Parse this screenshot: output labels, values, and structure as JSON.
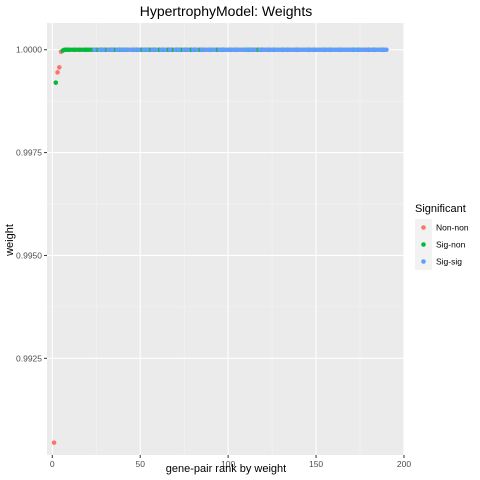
{
  "chart_data": {
    "type": "scatter",
    "title": "HypertrophyModel: Weights",
    "xlabel": "gene-pair rank by weight",
    "ylabel": "weight",
    "xlim": [
      -3,
      200
    ],
    "ylim": [
      0.99015,
      1.00065
    ],
    "x_ticks": [
      0,
      50,
      100,
      150,
      200
    ],
    "y_ticks": [
      0.9925,
      0.995,
      0.9975,
      1.0
    ],
    "y_tick_labels": [
      "0.9925",
      "0.9950",
      "0.9975",
      "1.0000"
    ],
    "grid": true,
    "legend": {
      "title": "Significant",
      "position": "right",
      "entries": [
        {
          "name": "Non-non",
          "color": "#F8766D"
        },
        {
          "name": "Sig-non",
          "color": "#00BA38"
        },
        {
          "name": "Sig-sig",
          "color": "#619CFF"
        }
      ]
    },
    "series": [
      {
        "name": "Non-non",
        "color": "#F8766D",
        "points": [
          [
            1,
            0.99045
          ],
          [
            3,
            0.99945
          ],
          [
            4,
            0.99957
          ],
          [
            5,
            0.99995
          ],
          [
            11,
            1.0
          ],
          [
            14,
            1.0
          ],
          [
            17,
            1.0
          ],
          [
            22,
            1.0
          ],
          [
            26,
            1.0
          ],
          [
            31,
            1.0
          ],
          [
            36,
            1.0
          ],
          [
            44,
            1.0
          ],
          [
            50,
            1.0
          ],
          [
            56,
            1.0
          ],
          [
            60,
            1.0
          ],
          [
            65,
            1.0
          ],
          [
            69,
            1.0
          ],
          [
            74,
            1.0
          ],
          [
            78,
            1.0
          ],
          [
            83,
            1.0
          ],
          [
            88,
            1.0
          ],
          [
            93,
            1.0
          ],
          [
            99,
            1.0
          ],
          [
            107,
            1.0
          ],
          [
            116,
            1.0
          ],
          [
            121,
            1.0
          ],
          [
            128,
            1.0
          ],
          [
            136,
            1.0
          ],
          [
            143,
            1.0
          ],
          [
            151,
            1.0
          ],
          [
            160,
            1.0
          ],
          [
            168,
            1.0
          ],
          [
            177,
            1.0
          ],
          [
            185,
            1.0
          ]
        ]
      },
      {
        "name": "Sig-non",
        "color": "#00BA38",
        "points": [
          [
            2,
            0.9992
          ],
          [
            6,
            0.99998
          ],
          [
            7,
            1.0
          ],
          [
            8,
            1.0
          ],
          [
            9,
            1.0
          ],
          [
            10,
            1.0
          ],
          [
            12,
            1.0
          ],
          [
            13,
            1.0
          ],
          [
            15,
            1.0
          ],
          [
            16,
            1.0
          ],
          [
            18,
            1.0
          ],
          [
            19,
            1.0
          ],
          [
            20,
            1.0
          ],
          [
            21,
            1.0
          ],
          [
            23,
            1.0
          ],
          [
            25,
            1.0
          ],
          [
            28,
            1.0
          ],
          [
            30,
            1.0
          ],
          [
            33,
            1.0
          ],
          [
            35,
            1.0
          ],
          [
            38,
            1.0
          ],
          [
            40,
            1.0
          ],
          [
            42,
            1.0
          ],
          [
            46,
            1.0
          ],
          [
            48,
            1.0
          ],
          [
            51,
            1.0
          ],
          [
            53,
            1.0
          ],
          [
            55,
            1.0
          ],
          [
            58,
            1.0
          ],
          [
            61,
            1.0
          ],
          [
            63,
            1.0
          ],
          [
            66,
            1.0
          ],
          [
            68,
            1.0
          ],
          [
            71,
            1.0
          ],
          [
            73,
            1.0
          ],
          [
            76,
            1.0
          ],
          [
            79,
            1.0
          ],
          [
            81,
            1.0
          ],
          [
            84,
            1.0
          ],
          [
            86,
            1.0
          ],
          [
            90,
            1.0
          ],
          [
            94,
            1.0
          ],
          [
            97,
            1.0
          ],
          [
            101,
            1.0
          ],
          [
            104,
            1.0
          ],
          [
            110,
            1.0
          ],
          [
            112,
            1.0
          ],
          [
            114,
            1.0
          ],
          [
            117,
            1.0
          ],
          [
            119,
            1.0
          ],
          [
            123,
            1.0
          ],
          [
            126,
            1.0
          ],
          [
            131,
            1.0
          ],
          [
            134,
            1.0
          ],
          [
            139,
            1.0
          ],
          [
            146,
            1.0
          ],
          [
            149,
            1.0
          ],
          [
            155,
            1.0
          ],
          [
            158,
            1.0
          ],
          [
            164,
            1.0
          ],
          [
            171,
            1.0
          ],
          [
            174,
            1.0
          ],
          [
            180,
            1.0
          ],
          [
            183,
            1.0
          ],
          [
            188,
            1.0
          ]
        ]
      },
      {
        "name": "Sig-sig",
        "color": "#619CFF",
        "points": [
          [
            24,
            1.0
          ],
          [
            27,
            1.0
          ],
          [
            29,
            1.0
          ],
          [
            32,
            1.0
          ],
          [
            34,
            1.0
          ],
          [
            37,
            1.0
          ],
          [
            39,
            1.0
          ],
          [
            41,
            1.0
          ],
          [
            43,
            1.0
          ],
          [
            45,
            1.0
          ],
          [
            47,
            1.0
          ],
          [
            49,
            1.0
          ],
          [
            52,
            1.0
          ],
          [
            54,
            1.0
          ],
          [
            57,
            1.0
          ],
          [
            59,
            1.0
          ],
          [
            62,
            1.0
          ],
          [
            64,
            1.0
          ],
          [
            67,
            1.0
          ],
          [
            70,
            1.0
          ],
          [
            72,
            1.0
          ],
          [
            75,
            1.0
          ],
          [
            77,
            1.0
          ],
          [
            80,
            1.0
          ],
          [
            82,
            1.0
          ],
          [
            85,
            1.0
          ],
          [
            87,
            1.0
          ],
          [
            89,
            1.0
          ],
          [
            91,
            1.0
          ],
          [
            92,
            1.0
          ],
          [
            95,
            1.0
          ],
          [
            96,
            1.0
          ],
          [
            98,
            1.0
          ],
          [
            100,
            1.0
          ],
          [
            102,
            1.0
          ],
          [
            103,
            1.0
          ],
          [
            105,
            1.0
          ],
          [
            106,
            1.0
          ],
          [
            108,
            1.0
          ],
          [
            109,
            1.0
          ],
          [
            111,
            1.0
          ],
          [
            113,
            1.0
          ],
          [
            115,
            1.0
          ],
          [
            118,
            1.0
          ],
          [
            120,
            1.0
          ],
          [
            122,
            1.0
          ],
          [
            124,
            1.0
          ],
          [
            125,
            1.0
          ],
          [
            127,
            1.0
          ],
          [
            129,
            1.0
          ],
          [
            130,
            1.0
          ],
          [
            132,
            1.0
          ],
          [
            133,
            1.0
          ],
          [
            135,
            1.0
          ],
          [
            137,
            1.0
          ],
          [
            138,
            1.0
          ],
          [
            140,
            1.0
          ],
          [
            141,
            1.0
          ],
          [
            142,
            1.0
          ],
          [
            144,
            1.0
          ],
          [
            145,
            1.0
          ],
          [
            147,
            1.0
          ],
          [
            148,
            1.0
          ],
          [
            150,
            1.0
          ],
          [
            152,
            1.0
          ],
          [
            153,
            1.0
          ],
          [
            154,
            1.0
          ],
          [
            156,
            1.0
          ],
          [
            157,
            1.0
          ],
          [
            159,
            1.0
          ],
          [
            161,
            1.0
          ],
          [
            162,
            1.0
          ],
          [
            163,
            1.0
          ],
          [
            165,
            1.0
          ],
          [
            166,
            1.0
          ],
          [
            167,
            1.0
          ],
          [
            169,
            1.0
          ],
          [
            170,
            1.0
          ],
          [
            172,
            1.0
          ],
          [
            173,
            1.0
          ],
          [
            175,
            1.0
          ],
          [
            176,
            1.0
          ],
          [
            178,
            1.0
          ],
          [
            179,
            1.0
          ],
          [
            181,
            1.0
          ],
          [
            182,
            1.0
          ],
          [
            184,
            1.0
          ],
          [
            186,
            1.0
          ],
          [
            187,
            1.0
          ],
          [
            189,
            1.0
          ],
          [
            190,
            1.0
          ]
        ]
      }
    ]
  }
}
